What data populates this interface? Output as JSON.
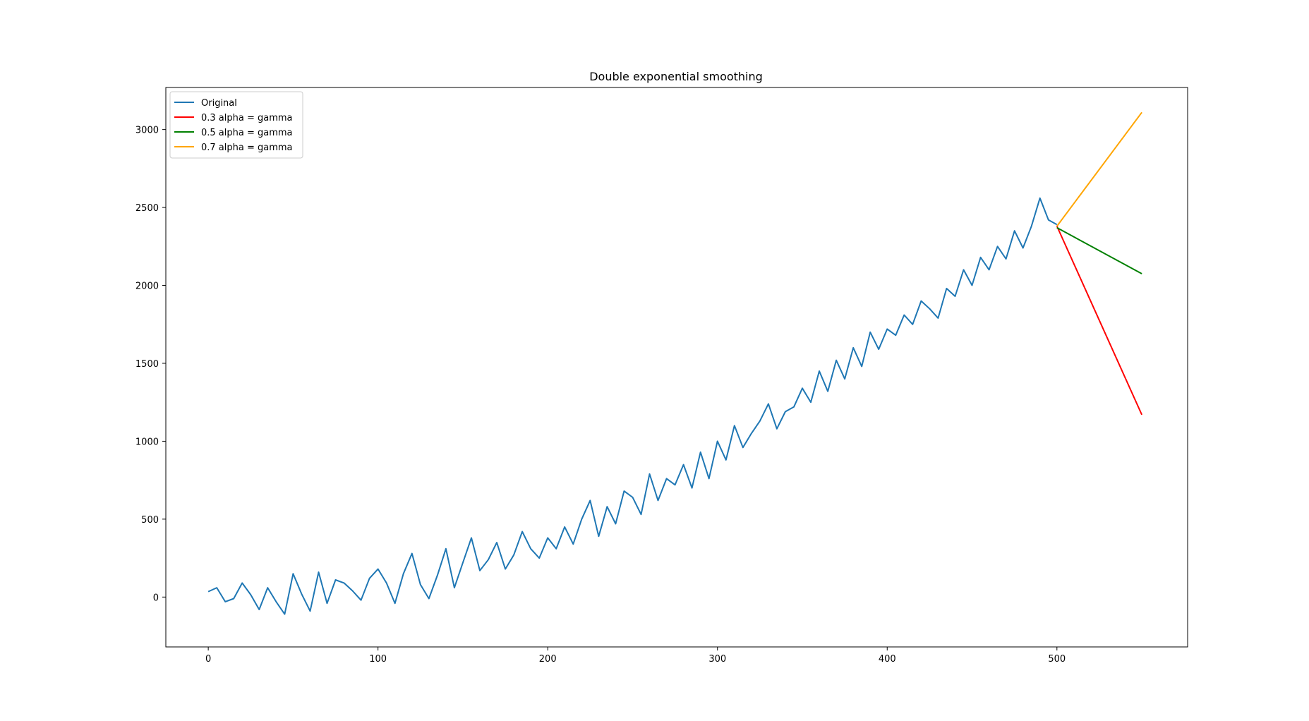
{
  "chart_data": {
    "type": "line",
    "title": "Double exponential smoothing",
    "xlabel": "",
    "ylabel": "",
    "xlim": [
      -25,
      577
    ],
    "ylim": [
      -320,
      3270
    ],
    "xticks": [
      0,
      100,
      200,
      300,
      400,
      500
    ],
    "yticks": [
      0,
      500,
      1000,
      1500,
      2000,
      2500,
      3000
    ],
    "grid": false,
    "legend_position": "top-left",
    "series": [
      {
        "name": "Original",
        "color": "#1f77b4",
        "x": [
          0,
          5,
          10,
          15,
          20,
          25,
          30,
          35,
          40,
          45,
          50,
          55,
          60,
          65,
          70,
          75,
          80,
          85,
          90,
          95,
          100,
          105,
          110,
          115,
          120,
          125,
          130,
          135,
          140,
          145,
          150,
          155,
          160,
          165,
          170,
          175,
          180,
          185,
          190,
          195,
          200,
          205,
          210,
          215,
          220,
          225,
          230,
          235,
          240,
          245,
          250,
          255,
          260,
          265,
          270,
          275,
          280,
          285,
          290,
          295,
          300,
          305,
          310,
          315,
          320,
          325,
          330,
          335,
          340,
          345,
          350,
          355,
          360,
          365,
          370,
          375,
          380,
          385,
          390,
          395,
          400,
          405,
          410,
          415,
          420,
          425,
          430,
          435,
          440,
          445,
          450,
          455,
          460,
          465,
          470,
          475,
          480,
          485,
          490,
          495,
          500
        ],
        "y": [
          35,
          60,
          -30,
          -10,
          90,
          15,
          -80,
          60,
          -30,
          -110,
          150,
          20,
          -90,
          160,
          -40,
          110,
          90,
          40,
          -20,
          120,
          180,
          90,
          -40,
          150,
          280,
          80,
          -10,
          140,
          310,
          60,
          220,
          380,
          170,
          240,
          350,
          180,
          270,
          420,
          310,
          250,
          380,
          310,
          450,
          340,
          500,
          620,
          390,
          580,
          470,
          680,
          640,
          530,
          790,
          620,
          760,
          720,
          850,
          700,
          930,
          760,
          1000,
          880,
          1100,
          960,
          1050,
          1130,
          1240,
          1080,
          1190,
          1220,
          1340,
          1250,
          1450,
          1320,
          1520,
          1400,
          1600,
          1480,
          1700,
          1590,
          1720,
          1680,
          1810,
          1750,
          1900,
          1850,
          1790,
          1980,
          1930,
          2100,
          2000,
          2180,
          2100,
          2250,
          2170,
          2350,
          2240,
          2380,
          2560,
          2420,
          2390
        ]
      },
      {
        "name": "0.3 alpha = gamma",
        "color": "#ff0000",
        "x": [
          500,
          550
        ],
        "y": [
          2380,
          1170
        ]
      },
      {
        "name": "0.5 alpha = gamma",
        "color": "#008000",
        "x": [
          500,
          550
        ],
        "y": [
          2370,
          2075
        ]
      },
      {
        "name": "0.7 alpha = gamma",
        "color": "#ffa500",
        "x": [
          500,
          550
        ],
        "y": [
          2380,
          3110
        ]
      }
    ]
  }
}
